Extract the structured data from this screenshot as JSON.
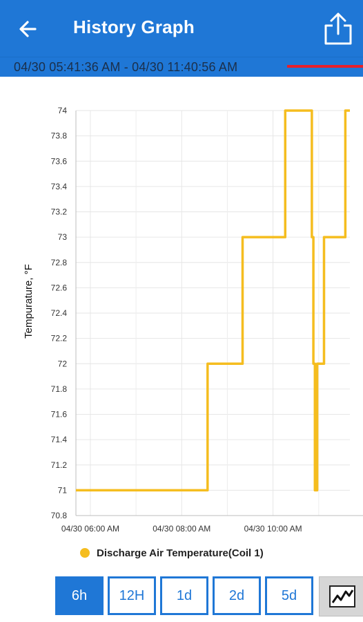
{
  "header": {
    "title": "History Graph",
    "back_icon": "arrow-left-icon",
    "share_icon": "share-icon"
  },
  "range": {
    "text": "04/30 05:41:36 AM - 04/30 11:40:56 AM",
    "indicator_color": "#e8202a"
  },
  "colors": {
    "primary": "#1f77d6",
    "series": "#f5bd1f"
  },
  "chart_data": {
    "type": "line",
    "ylabel": "Tempurature, °F",
    "xlabel": "",
    "ylim": [
      70.8,
      74
    ],
    "xlim": [
      "05:41",
      "11:41"
    ],
    "ytick_labels": [
      "70.8",
      "71",
      "71.2",
      "71.4",
      "71.6",
      "71.8",
      "72",
      "72.2",
      "72.4",
      "72.6",
      "72.8",
      "73",
      "73.2",
      "73.4",
      "73.6",
      "73.8",
      "74"
    ],
    "xticks": [
      {
        "time": "06:00",
        "label": "04/30 06:00 AM"
      },
      {
        "time": "08:00",
        "label": "04/30 08:00 AM"
      },
      {
        "time": "10:00",
        "label": "04/30 10:00 AM"
      }
    ],
    "grid": true,
    "legend_position": "bottom",
    "series": [
      {
        "name": "Discharge Air Temperature(Coil 1)",
        "color": "#f5bd1f",
        "points": [
          [
            "05:41",
            71
          ],
          [
            "08:34",
            71
          ],
          [
            "08:34",
            72
          ],
          [
            "09:20",
            72
          ],
          [
            "09:20",
            73
          ],
          [
            "10:16",
            73
          ],
          [
            "10:16",
            74
          ],
          [
            "10:51",
            74
          ],
          [
            "10:51",
            73
          ],
          [
            "10:53",
            73
          ],
          [
            "10:53",
            72
          ],
          [
            "10:55",
            72
          ],
          [
            "10:55",
            71
          ],
          [
            "10:58",
            71
          ],
          [
            "10:58",
            72
          ],
          [
            "11:07",
            72
          ],
          [
            "11:07",
            73
          ],
          [
            "11:35",
            73
          ],
          [
            "11:35",
            74
          ],
          [
            "11:41",
            74
          ]
        ]
      }
    ]
  },
  "time_ranges": [
    {
      "label": "6h",
      "active": true
    },
    {
      "label": "12H",
      "active": false
    },
    {
      "label": "1d",
      "active": false
    },
    {
      "label": "2d",
      "active": false
    },
    {
      "label": "5d",
      "active": false
    }
  ],
  "mode_toggle_icon": "line-chart-icon"
}
